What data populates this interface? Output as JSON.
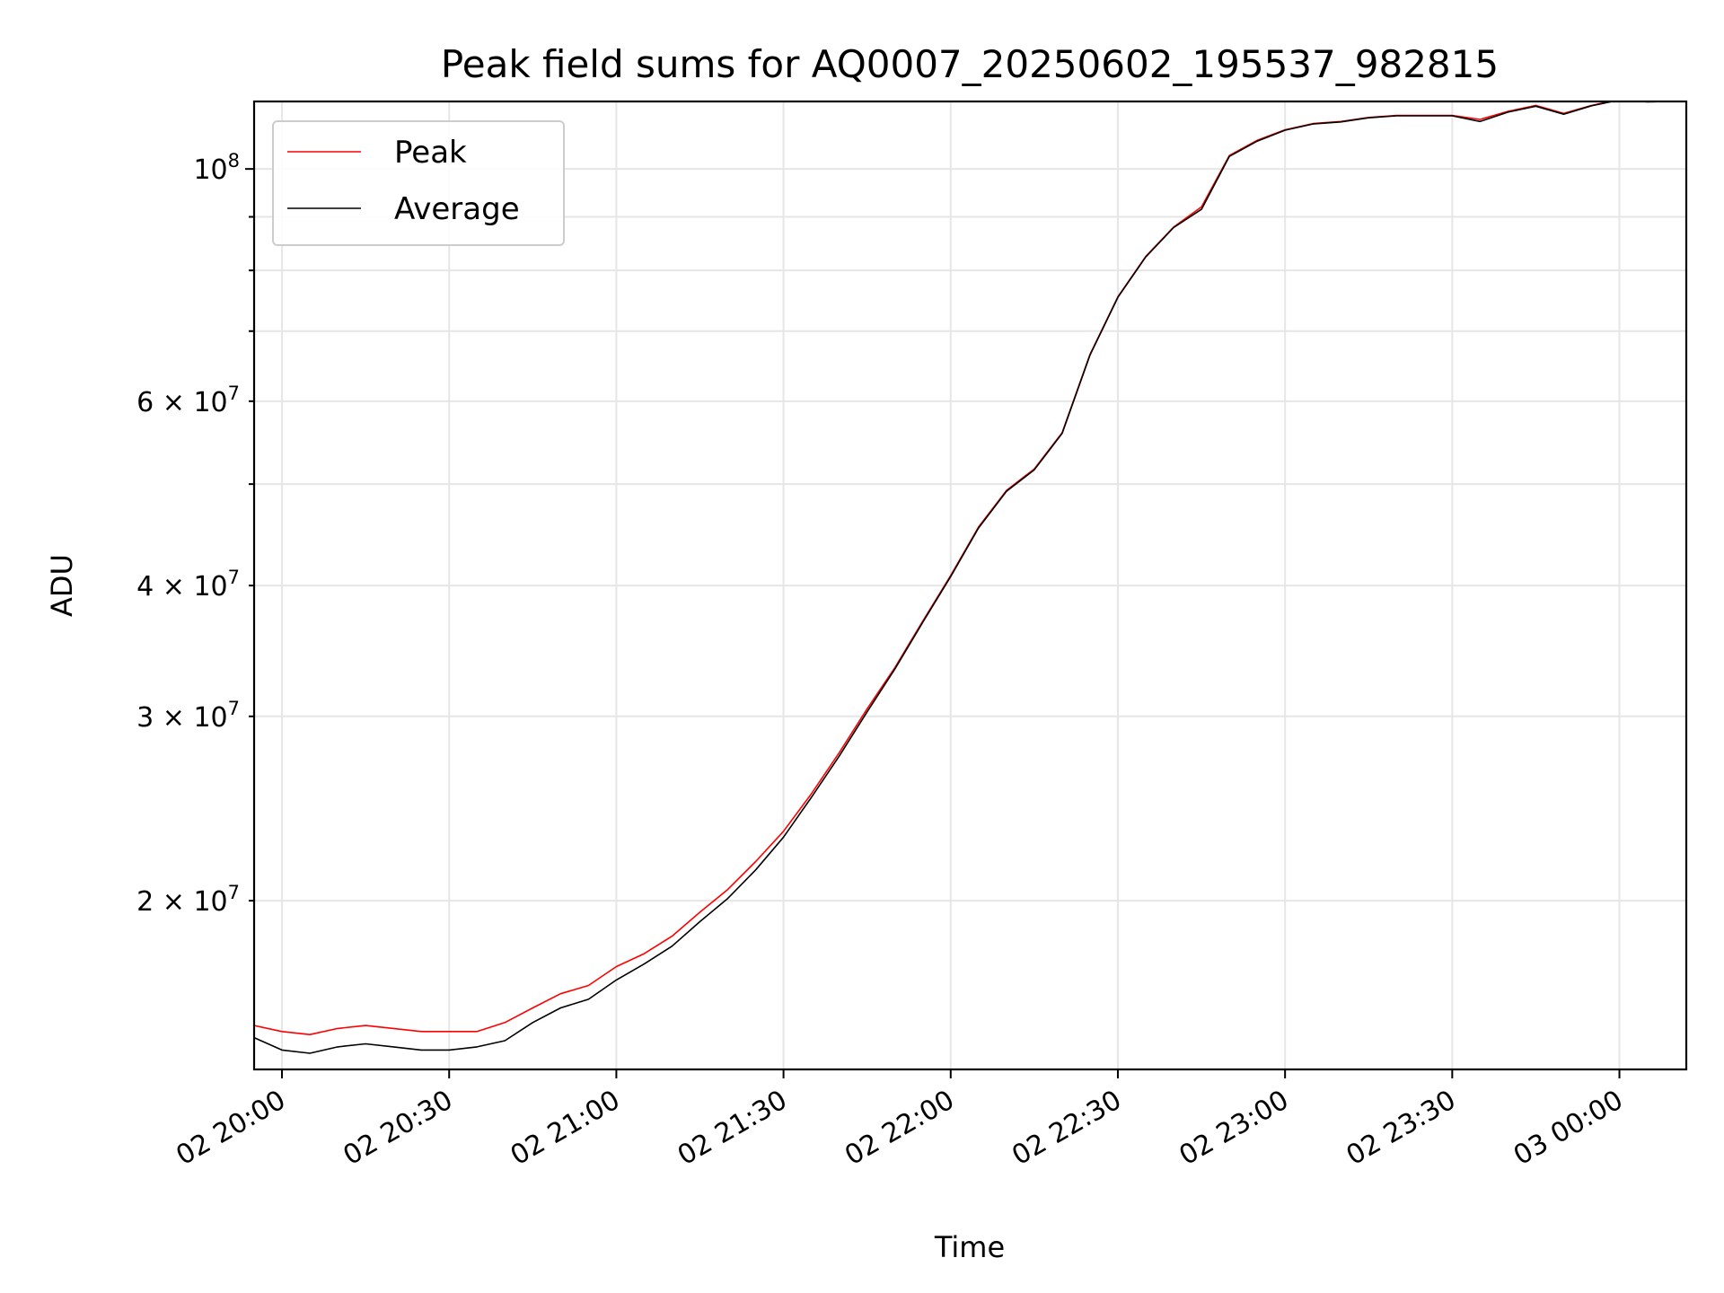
{
  "chart_data": {
    "type": "line",
    "title": "Peak field sums for AQ0007_20250602_195537_982815",
    "xlabel": "Time",
    "ylabel": "ADU",
    "x_axis": {
      "kind": "time",
      "range": [
        "2025-06-02 19:55",
        "2025-06-03 00:12"
      ],
      "ticks": [
        {
          "value": "2025-06-02 20:00",
          "label": "02 20:00"
        },
        {
          "value": "2025-06-02 20:30",
          "label": "02 20:30"
        },
        {
          "value": "2025-06-02 21:00",
          "label": "02 21:00"
        },
        {
          "value": "2025-06-02 21:30",
          "label": "02 21:30"
        },
        {
          "value": "2025-06-02 22:00",
          "label": "02 22:00"
        },
        {
          "value": "2025-06-02 22:30",
          "label": "02 22:30"
        },
        {
          "value": "2025-06-02 23:00",
          "label": "02 23:00"
        },
        {
          "value": "2025-06-02 23:30",
          "label": "02 23:30"
        },
        {
          "value": "2025-06-03 00:00",
          "label": "03 00:00"
        }
      ],
      "tick_label_rotation_deg": 30
    },
    "y_axis": {
      "scale": "log",
      "range": [
        13800000,
        116000000
      ],
      "major_ticks": [
        {
          "value": 100000000,
          "base": "10",
          "exp": "8"
        }
      ],
      "labeled_minor_ticks": [
        {
          "value": 20000000,
          "mant": "2",
          "base": "10",
          "exp": "7"
        },
        {
          "value": 30000000,
          "mant": "3",
          "base": "10",
          "exp": "7"
        },
        {
          "value": 40000000,
          "mant": "4",
          "base": "10",
          "exp": "7"
        },
        {
          "value": 60000000,
          "mant": "6",
          "base": "10",
          "exp": "7"
        }
      ],
      "unlabeled_minor_ticks": [
        50000000,
        70000000,
        80000000,
        90000000
      ]
    },
    "grid": true,
    "legend": {
      "position": "top-left"
    },
    "series": [
      {
        "name": "Peak",
        "color": "#ff0000",
        "x": [
          "2025-06-02 19:55",
          "2025-06-02 20:00",
          "2025-06-02 20:05",
          "2025-06-02 20:10",
          "2025-06-02 20:15",
          "2025-06-02 20:20",
          "2025-06-02 20:25",
          "2025-06-02 20:30",
          "2025-06-02 20:35",
          "2025-06-02 20:40",
          "2025-06-02 20:45",
          "2025-06-02 20:50",
          "2025-06-02 20:55",
          "2025-06-02 21:00",
          "2025-06-02 21:05",
          "2025-06-02 21:10",
          "2025-06-02 21:15",
          "2025-06-02 21:20",
          "2025-06-02 21:25",
          "2025-06-02 21:30",
          "2025-06-02 21:35",
          "2025-06-02 21:40",
          "2025-06-02 21:45",
          "2025-06-02 21:50",
          "2025-06-02 21:55",
          "2025-06-02 22:00",
          "2025-06-02 22:05",
          "2025-06-02 22:10",
          "2025-06-02 22:15",
          "2025-06-02 22:20",
          "2025-06-02 22:25",
          "2025-06-02 22:30",
          "2025-06-02 22:35",
          "2025-06-02 22:40",
          "2025-06-02 22:45",
          "2025-06-02 22:50",
          "2025-06-02 22:55",
          "2025-06-02 23:00",
          "2025-06-02 23:05",
          "2025-06-02 23:10",
          "2025-06-02 23:15",
          "2025-06-02 23:20",
          "2025-06-02 23:25",
          "2025-06-02 23:30",
          "2025-06-02 23:35",
          "2025-06-02 23:40",
          "2025-06-02 23:45",
          "2025-06-02 23:50",
          "2025-06-02 23:55",
          "2025-06-03 00:00",
          "2025-06-03 00:05",
          "2025-06-03 00:11"
        ],
        "y": [
          15200000,
          15000000,
          14900000,
          15100000,
          15200000,
          15100000,
          15000000,
          15000000,
          15000000,
          15300000,
          15800000,
          16300000,
          16600000,
          17300000,
          17800000,
          18500000,
          19500000,
          20500000,
          21800000,
          23300000,
          25300000,
          27700000,
          30500000,
          33400000,
          37000000,
          40900000,
          45500000,
          49300000,
          51700000,
          56000000,
          66500000,
          75500000,
          82500000,
          88000000,
          92000000,
          103000000,
          106500000,
          109000000,
          110500000,
          111000000,
          112000000,
          112500000,
          112500000,
          112500000,
          111500000,
          113500000,
          115000000,
          113000000,
          115000000,
          116500000,
          116000000,
          116200000
        ]
      },
      {
        "name": "Average",
        "color": "#000000",
        "x": [
          "2025-06-02 19:55",
          "2025-06-02 20:00",
          "2025-06-02 20:05",
          "2025-06-02 20:10",
          "2025-06-02 20:15",
          "2025-06-02 20:20",
          "2025-06-02 20:25",
          "2025-06-02 20:30",
          "2025-06-02 20:35",
          "2025-06-02 20:40",
          "2025-06-02 20:45",
          "2025-06-02 20:50",
          "2025-06-02 20:55",
          "2025-06-02 21:00",
          "2025-06-02 21:05",
          "2025-06-02 21:10",
          "2025-06-02 21:15",
          "2025-06-02 21:20",
          "2025-06-02 21:25",
          "2025-06-02 21:30",
          "2025-06-02 21:35",
          "2025-06-02 21:40",
          "2025-06-02 21:45",
          "2025-06-02 21:50",
          "2025-06-02 21:55",
          "2025-06-02 22:00",
          "2025-06-02 22:05",
          "2025-06-02 22:10",
          "2025-06-02 22:15",
          "2025-06-02 22:20",
          "2025-06-02 22:25",
          "2025-06-02 22:30",
          "2025-06-02 22:35",
          "2025-06-02 22:40",
          "2025-06-02 22:45",
          "2025-06-02 22:50",
          "2025-06-02 22:55",
          "2025-06-02 23:00",
          "2025-06-02 23:05",
          "2025-06-02 23:10",
          "2025-06-02 23:15",
          "2025-06-02 23:20",
          "2025-06-02 23:25",
          "2025-06-02 23:30",
          "2025-06-02 23:35",
          "2025-06-02 23:40",
          "2025-06-02 23:45",
          "2025-06-02 23:50",
          "2025-06-02 23:55",
          "2025-06-03 00:00",
          "2025-06-03 00:05",
          "2025-06-03 00:11"
        ],
        "y": [
          14800000,
          14400000,
          14300000,
          14500000,
          14600000,
          14500000,
          14400000,
          14400000,
          14500000,
          14700000,
          15300000,
          15800000,
          16100000,
          16800000,
          17400000,
          18100000,
          19100000,
          20100000,
          21400000,
          23000000,
          25100000,
          27500000,
          30300000,
          33300000,
          36900000,
          40800000,
          45400000,
          49200000,
          51600000,
          55900000,
          66400000,
          75400000,
          82400000,
          87900000,
          91500000,
          102800000,
          106300000,
          108900000,
          110400000,
          110900000,
          111900000,
          112400000,
          112400000,
          112400000,
          111000000,
          113300000,
          114800000,
          112800000,
          114900000,
          116400000,
          115900000,
          116100000
        ]
      }
    ]
  }
}
